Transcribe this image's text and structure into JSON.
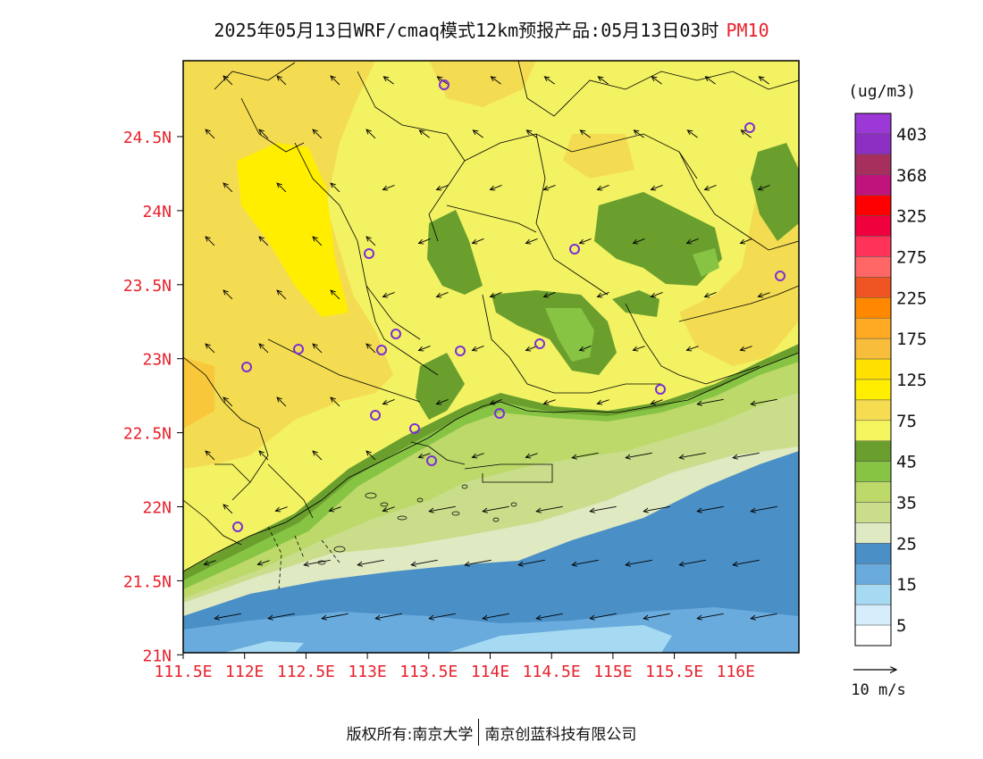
{
  "header": {
    "title": "2025年05月13日WRF/cmaq模式12km预报产品:05月13日03时",
    "pollutant": "PM10"
  },
  "map": {
    "lat_labels": [
      "24.5N",
      "24N",
      "23.5N",
      "23N",
      "22.5N",
      "22N",
      "21.5N",
      "21N"
    ],
    "lon_labels": [
      "111.5E",
      "112E",
      "112.5E",
      "113E",
      "113.5E",
      "114E",
      "114.5E",
      "115E",
      "115.5E",
      "116E"
    ],
    "lon_range": [
      111.5,
      116.6
    ],
    "lat_range": [
      21.0,
      25.0
    ],
    "label_color": "#e8212b"
  },
  "legend": {
    "unit": "(ug/m3)",
    "labels": [
      "403",
      "368",
      "325",
      "275",
      "225",
      "175",
      "125",
      "75",
      "45",
      "35",
      "25",
      "15",
      "5"
    ],
    "colors": [
      "#9b38d6",
      "#8d2fc2",
      "#a62f5e",
      "#c0137b",
      "#ff0000",
      "#f0003c",
      "#ff335a",
      "#ff6666",
      "#ee5522",
      "#ff8800",
      "#ffaa22",
      "#f9bd3c",
      "#ffe000",
      "#ffee00",
      "#f5dc50",
      "#f5f560",
      "#6a9f2e",
      "#88c444",
      "#bcd96a",
      "#c9dd8a",
      "#dfe9c2",
      "#4a8fc6",
      "#6aabdd",
      "#a6daf3",
      "#d6eefc",
      "#ffffff"
    ],
    "wind_scale": "10 m/s"
  },
  "footer": {
    "copyright": "版权所有:南京大学",
    "company": "南京创蓝科技有限公司"
  }
}
